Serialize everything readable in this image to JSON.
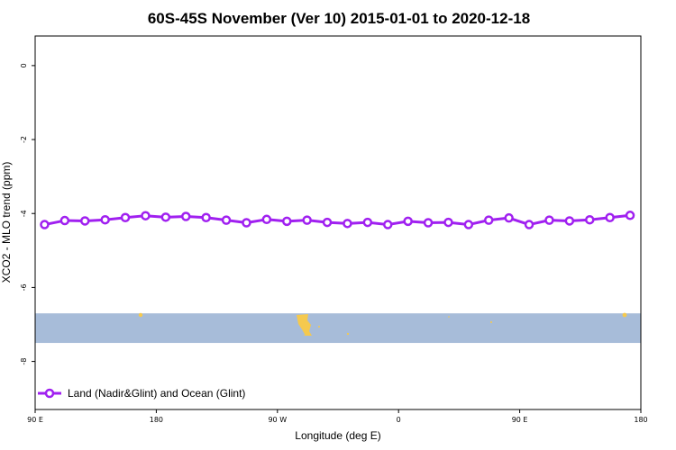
{
  "chart_data": {
    "type": "line",
    "title": "60S-45S November (Ver 10)   2015-01-01 to 2020-12-18",
    "xlabel": "Longitude (deg E)",
    "ylabel": "XCO2 - MLO trend (ppm)",
    "x_tick_labels": [
      "90 E",
      "180",
      "90 W",
      "0",
      "90 E",
      "180"
    ],
    "x_tick_positions": [
      90,
      180,
      270,
      360,
      450,
      540
    ],
    "xlim": [
      90,
      540
    ],
    "y_ticks": [
      0,
      -2,
      -4,
      -6,
      -8
    ],
    "y_tick_labels": [
      "0",
      "-2",
      "-4",
      "-6",
      "-8"
    ],
    "ylim": [
      -9.3,
      0.8
    ],
    "grid": false,
    "legend_position": "bottom-left",
    "colors": {
      "series": "#a020f0",
      "ocean_band": "#a7bcd9",
      "land": "#f5c94e"
    },
    "map_band": {
      "y_top": -6.7,
      "y_bottom": -7.5
    },
    "series": [
      {
        "name": "Land (Nadir&Glint) and Ocean (Glint)",
        "x": [
          97,
          112,
          127,
          142,
          157,
          172,
          187,
          202,
          217,
          232,
          247,
          262,
          277,
          292,
          307,
          322,
          337,
          352,
          367,
          382,
          397,
          412,
          427,
          442,
          457,
          472,
          487,
          502,
          517,
          532
        ],
        "y": [
          -4.3,
          -4.19,
          -4.2,
          -4.17,
          -4.11,
          -4.06,
          -4.1,
          -4.08,
          -4.11,
          -4.18,
          -4.25,
          -4.16,
          -4.21,
          -4.18,
          -4.24,
          -4.27,
          -4.24,
          -4.3,
          -4.21,
          -4.25,
          -4.24,
          -4.3,
          -4.18,
          -4.12,
          -4.3,
          -4.18,
          -4.2,
          -4.17,
          -4.11,
          -4.05
        ]
      }
    ]
  }
}
